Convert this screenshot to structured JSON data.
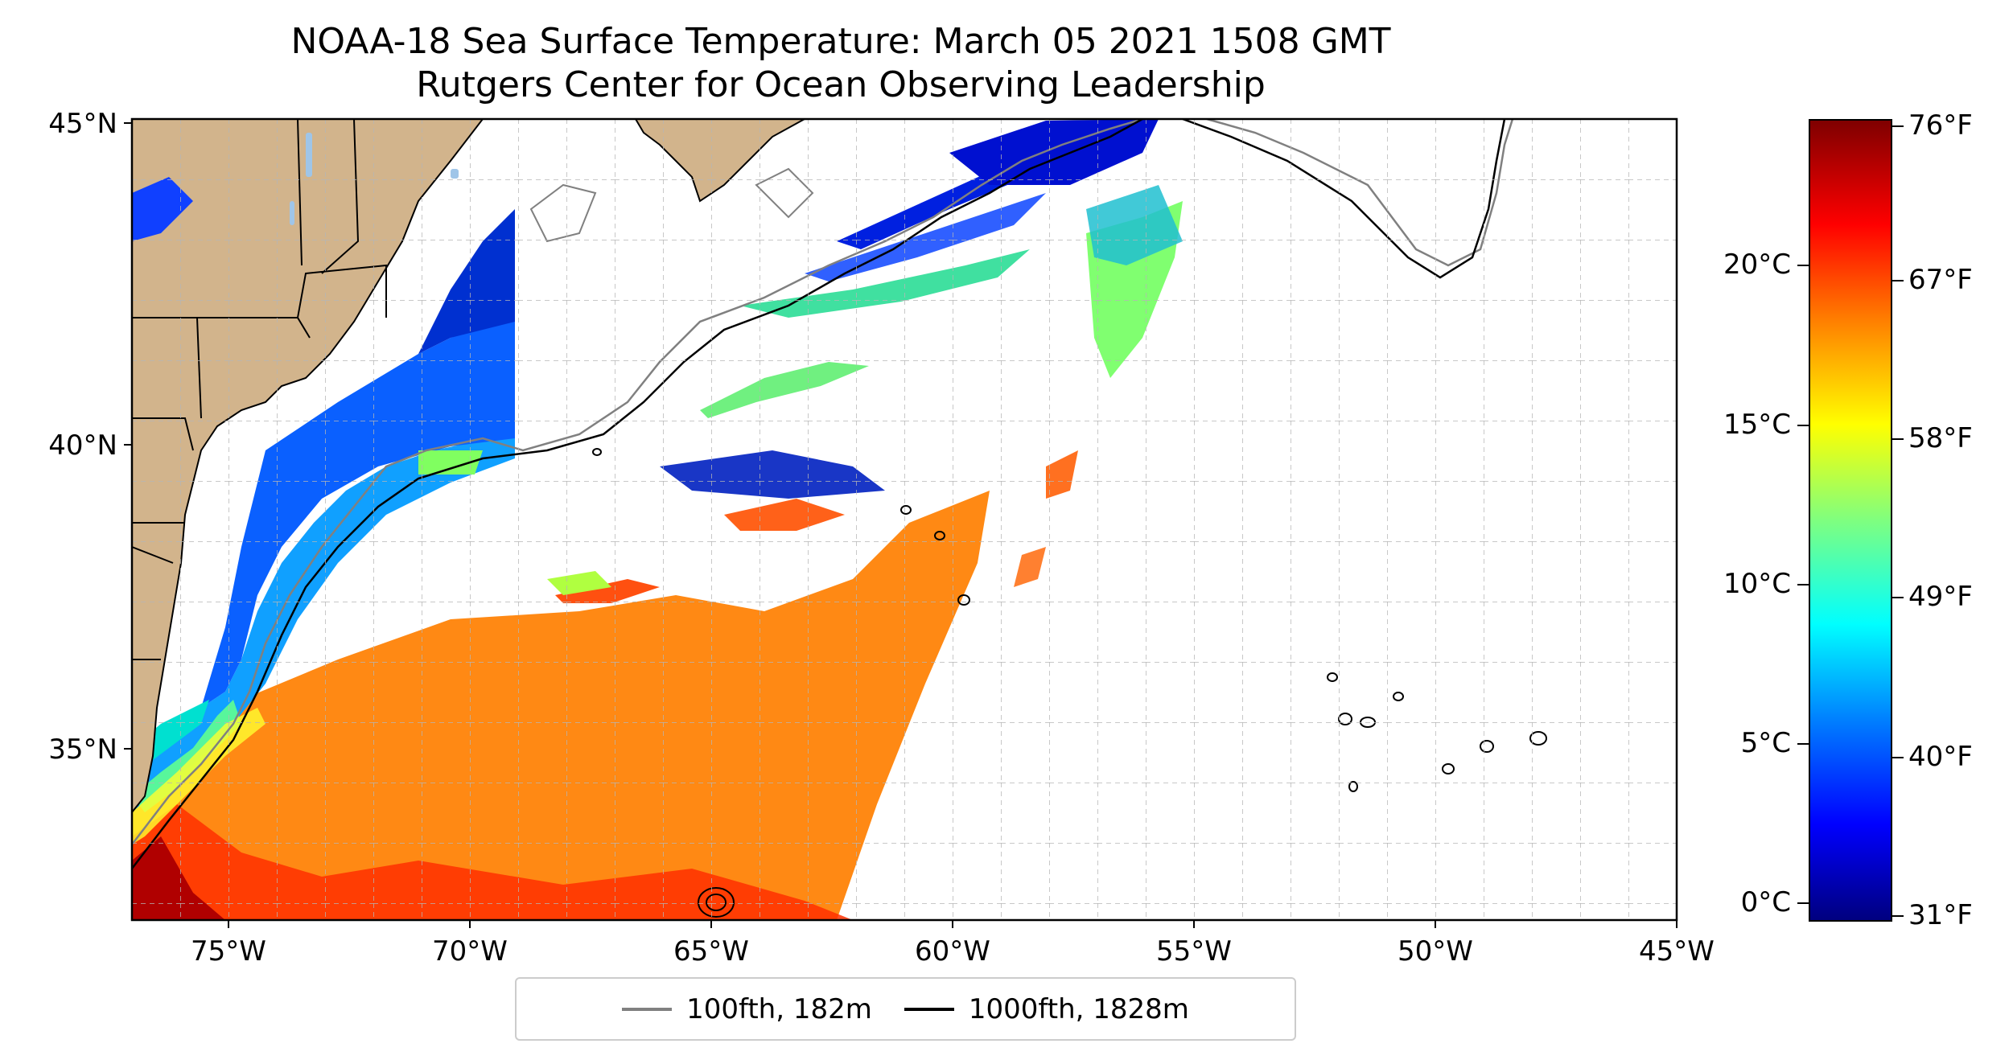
{
  "title": "NOAA-18 Sea Surface Temperature: March 05 2021 1508 GMT",
  "subtitle": "Rutgers Center for Ocean Observing Leadership",
  "map": {
    "lon_range": [
      -77,
      -45
    ],
    "lat_range": [
      32.3,
      45
    ],
    "lon_ticks": [
      "75°W",
      "70°W",
      "65°W",
      "60°W",
      "55°W",
      "50°W",
      "45°W"
    ],
    "lat_ticks": [
      "45°N",
      "40°N",
      "35°N"
    ],
    "grid": true,
    "land_color": "#d2b48c",
    "lake_color": "#9fc5e8"
  },
  "legend": {
    "items": [
      {
        "label": "100fth, 182m",
        "color": "#808080"
      },
      {
        "label": "1000fth, 1828m",
        "color": "#000000"
      }
    ]
  },
  "colorbar": {
    "colormap": "jet",
    "celsius_ticks": [
      "20°C",
      "15°C",
      "10°C",
      "5°C",
      "0°C"
    ],
    "fahrenheit_ticks": [
      "76°F",
      "67°F",
      "58°F",
      "49°F",
      "40°F",
      "31°F"
    ]
  }
}
